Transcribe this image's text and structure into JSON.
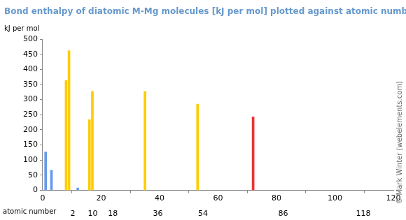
{
  "chart_data": {
    "type": "bar",
    "title": "Bond enthalpy of diatomic M-Mg molecules [kJ per mol] plotted against atomic number",
    "y_label": "kJ per mol",
    "x_label": "atomic number",
    "credit": "© Mark Winter (webelements.com)",
    "x": [
      1,
      3,
      8,
      9,
      12,
      16,
      17,
      35,
      53,
      72
    ],
    "values": [
      127,
      67,
      363,
      462,
      8,
      234,
      327,
      327,
      285,
      243
    ],
    "colors": [
      "#6699ee",
      "#6699ee",
      "#ffcc00",
      "#ffcc00",
      "#6699ee",
      "#ffcc00",
      "#ffcc00",
      "#ffcc00",
      "#ffcc00",
      "#ee3333"
    ],
    "xlim": [
      0,
      120
    ],
    "xticks": [
      0,
      20,
      40,
      60,
      80,
      100,
      120
    ],
    "x2ticks": [
      2,
      10,
      18,
      36,
      54,
      86,
      118
    ],
    "ylim": [
      0,
      500
    ],
    "yticks": [
      0,
      50,
      100,
      150,
      200,
      250,
      300,
      350,
      400,
      450,
      500
    ],
    "grid": false
  }
}
